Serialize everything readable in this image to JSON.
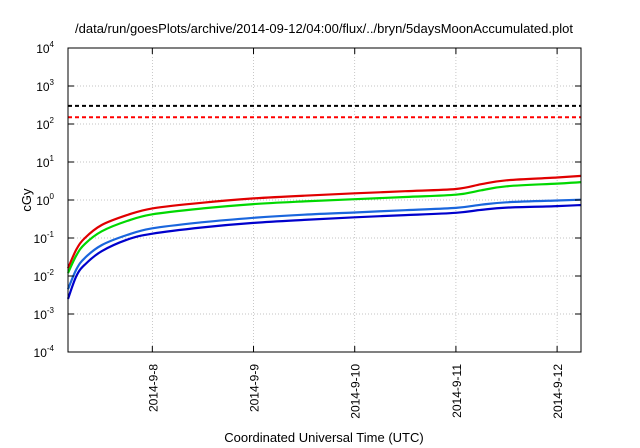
{
  "chart_data": {
    "type": "line",
    "title": "/data/run/goesPlots/archive/2014-09-12/04:00/flux/../bryn/5daysMoonAccumulated.plot",
    "xlabel": "Coordinated Universal Time (UTC)",
    "ylabel": "cGy",
    "y_scale": "log",
    "ylim": [
      0.0001,
      10000
    ],
    "y_ticks": [
      {
        "base": "10",
        "exp": "-4",
        "value": 0.0001
      },
      {
        "base": "10",
        "exp": "-3",
        "value": 0.001
      },
      {
        "base": "10",
        "exp": "-2",
        "value": 0.01
      },
      {
        "base": "10",
        "exp": "-1",
        "value": 0.1
      },
      {
        "base": "10",
        "exp": "0",
        "value": 1
      },
      {
        "base": "10",
        "exp": "1",
        "value": 10
      },
      {
        "base": "10",
        "exp": "2",
        "value": 100
      },
      {
        "base": "10",
        "exp": "3",
        "value": 1000
      },
      {
        "base": "10",
        "exp": "4",
        "value": 10000
      }
    ],
    "xlim": [
      "2014-09-07 04:00",
      "2014-09-12 05:40"
    ],
    "x_ticks": [
      "2014-9-8",
      "2014-9-9",
      "2014-9-10",
      "2014-9-11",
      "2014-9-12"
    ],
    "x_tick_dates": [
      "2014-09-08 00:00",
      "2014-09-09 00:00",
      "2014-09-10 00:00",
      "2014-09-11 00:00",
      "2014-09-12 00:00"
    ],
    "grid": true,
    "legend": "none",
    "thresholds": [
      {
        "value": 300,
        "color": "#000000",
        "style": "dashed"
      },
      {
        "value": 150,
        "color": "#ff0000",
        "style": "dashed"
      }
    ],
    "series": [
      {
        "color": "#e00000",
        "x": [
          "2014-09-07 04:00",
          "2014-09-07 06:00",
          "2014-09-07 08:00",
          "2014-09-07 12:00",
          "2014-09-07 18:00",
          "2014-09-08 00:00",
          "2014-09-08 12:00",
          "2014-09-09 00:00",
          "2014-09-09 12:00",
          "2014-09-10 00:00",
          "2014-09-10 12:00",
          "2014-09-11 00:00",
          "2014-09-11 06:00",
          "2014-09-11 12:00",
          "2014-09-12 00:00",
          "2014-09-12 05:40"
        ],
        "values": [
          0.016,
          0.05,
          0.1,
          0.22,
          0.4,
          0.6,
          0.85,
          1.1,
          1.3,
          1.5,
          1.7,
          1.95,
          2.6,
          3.3,
          3.9,
          4.3
        ]
      },
      {
        "color": "#00d800",
        "x": [
          "2014-09-07 04:00",
          "2014-09-07 06:00",
          "2014-09-07 08:00",
          "2014-09-07 12:00",
          "2014-09-07 18:00",
          "2014-09-08 00:00",
          "2014-09-08 12:00",
          "2014-09-09 00:00",
          "2014-09-09 12:00",
          "2014-09-10 00:00",
          "2014-09-10 12:00",
          "2014-09-11 00:00",
          "2014-09-11 06:00",
          "2014-09-11 12:00",
          "2014-09-12 00:00",
          "2014-09-12 05:40"
        ],
        "values": [
          0.012,
          0.035,
          0.07,
          0.15,
          0.28,
          0.42,
          0.6,
          0.78,
          0.92,
          1.05,
          1.2,
          1.38,
          1.8,
          2.3,
          2.7,
          2.95
        ]
      },
      {
        "color": "#1a66dd",
        "x": [
          "2014-09-07 04:00",
          "2014-09-07 06:00",
          "2014-09-07 08:00",
          "2014-09-07 12:00",
          "2014-09-07 18:00",
          "2014-09-08 00:00",
          "2014-09-08 12:00",
          "2014-09-09 00:00",
          "2014-09-09 12:00",
          "2014-09-10 00:00",
          "2014-09-10 12:00",
          "2014-09-11 00:00",
          "2014-09-11 06:00",
          "2014-09-11 12:00",
          "2014-09-12 00:00",
          "2014-09-12 05:40"
        ],
        "values": [
          0.0045,
          0.015,
          0.03,
          0.065,
          0.12,
          0.18,
          0.26,
          0.34,
          0.41,
          0.47,
          0.54,
          0.62,
          0.75,
          0.87,
          0.97,
          1.02
        ]
      },
      {
        "color": "#0000cc",
        "x": [
          "2014-09-07 04:00",
          "2014-09-07 06:00",
          "2014-09-07 08:00",
          "2014-09-07 12:00",
          "2014-09-07 18:00",
          "2014-09-08 00:00",
          "2014-09-08 12:00",
          "2014-09-09 00:00",
          "2014-09-09 12:00",
          "2014-09-10 00:00",
          "2014-09-10 12:00",
          "2014-09-11 00:00",
          "2014-09-11 06:00",
          "2014-09-11 12:00",
          "2014-09-12 00:00",
          "2014-09-12 05:40"
        ],
        "values": [
          0.0025,
          0.01,
          0.02,
          0.045,
          0.09,
          0.13,
          0.19,
          0.25,
          0.3,
          0.35,
          0.4,
          0.46,
          0.55,
          0.63,
          0.69,
          0.74
        ]
      }
    ]
  }
}
